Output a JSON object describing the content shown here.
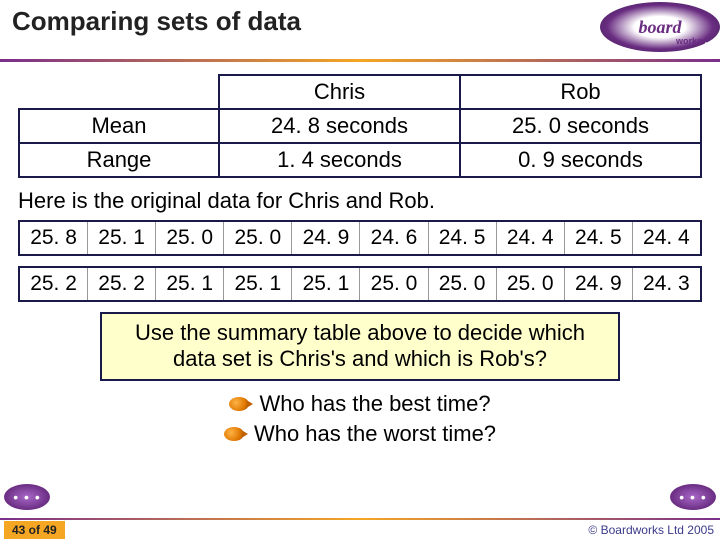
{
  "header": {
    "title": "Comparing sets of data",
    "logo_main": "board",
    "logo_sub": "works"
  },
  "stats_table": {
    "col_headers": [
      "Chris",
      "Rob"
    ],
    "rows": [
      {
        "label": "Mean",
        "values": [
          "24. 8 seconds",
          "25. 0 seconds"
        ]
      },
      {
        "label": "Range",
        "values": [
          "1. 4 seconds",
          "0. 9 seconds"
        ]
      }
    ],
    "border_color": "#1a1a4a",
    "font_size": 22
  },
  "caption": "Here is the original data for Chris and Rob.",
  "data_rows": [
    [
      "25. 8",
      "25. 1",
      "25. 0",
      "25. 0",
      "24. 9",
      "24. 6",
      "24. 5",
      "24. 4",
      "24. 5",
      "24. 4"
    ],
    [
      "25. 2",
      "25. 2",
      "25. 1",
      "25. 1",
      "25. 1",
      "25. 0",
      "25. 0",
      "25. 0",
      "24. 9",
      "24. 3"
    ]
  ],
  "data_row_style": {
    "border_color": "#1a1a4a",
    "font_size": 21
  },
  "prompt": {
    "text_line1": "Use the summary table above to decide which",
    "text_line2": "data set is Chris's and which is Rob's?",
    "background": "#ffffcc",
    "border_color": "#1a1a4a",
    "font_size": 22
  },
  "questions": [
    "Who has the best time?",
    "Who has the worst time?"
  ],
  "bullet_color": "#e07800",
  "footer": {
    "page": "43 of 49",
    "copyright": "© Boardworks Ltd 2005",
    "gradient": [
      "#7a2e8c",
      "#f5a623",
      "#7a2e8c"
    ]
  },
  "nav": {
    "left_label": "• • •",
    "right_label": "• • •"
  }
}
